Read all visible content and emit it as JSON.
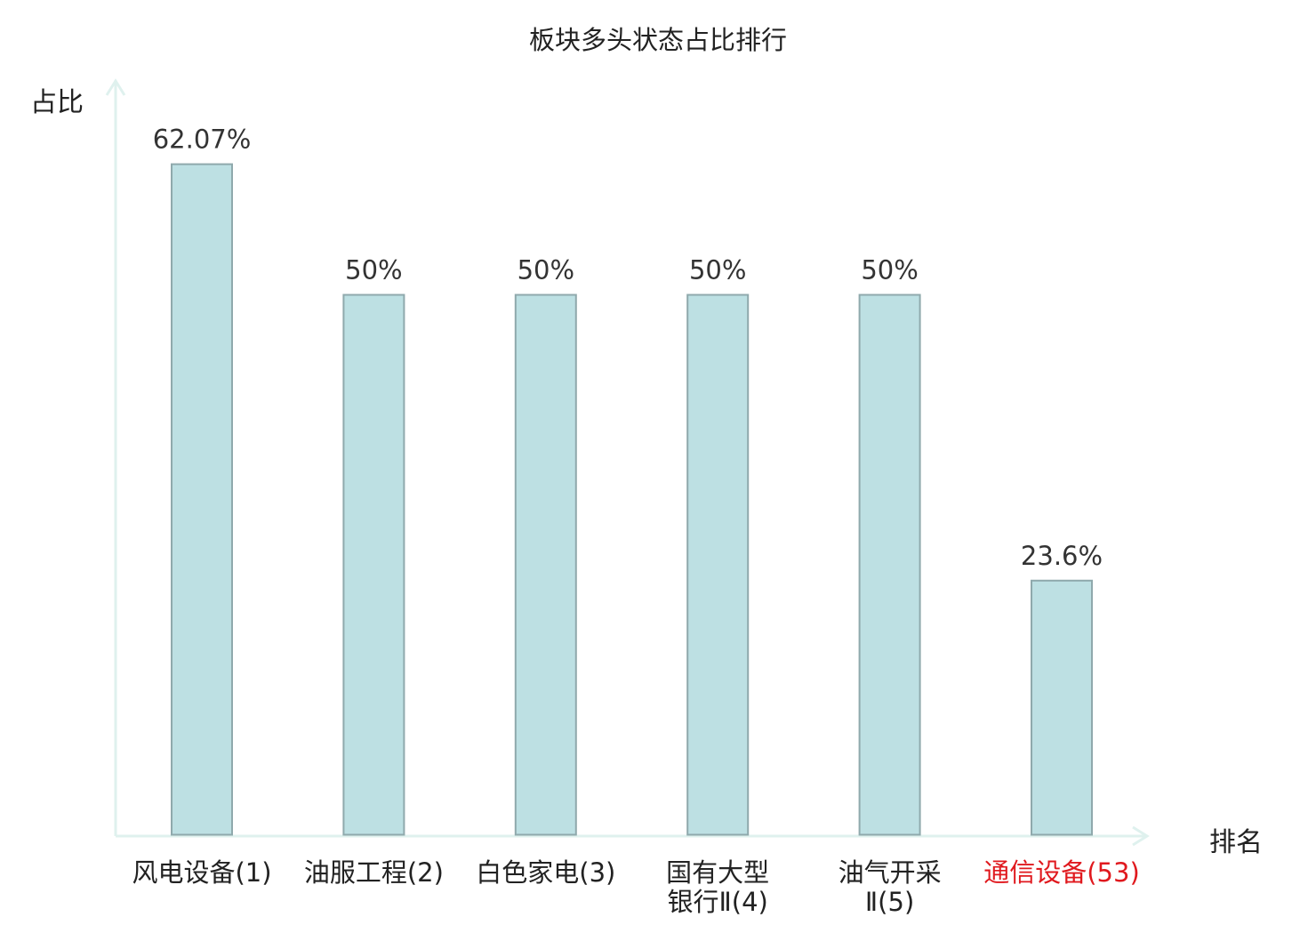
{
  "chart_data": {
    "type": "bar",
    "title": "板块多头状态占比排行",
    "ylabel": "占比",
    "xlabel": "排名",
    "categories": [
      "风电设备(1)",
      "油服工程(2)",
      "白色家电(3)",
      "国有大型银行Ⅱ(4)",
      "油气开采Ⅱ(5)",
      "通信设备(53)"
    ],
    "category_lines": [
      [
        "风电设备(1)"
      ],
      [
        "油服工程(2)"
      ],
      [
        "白色家电(3)"
      ],
      [
        "国有大型",
        "银行Ⅱ(4)"
      ],
      [
        "油气开采",
        "Ⅱ(5)"
      ],
      [
        "通信设备(53)"
      ]
    ],
    "values": [
      62.07,
      50,
      50,
      50,
      50,
      23.6
    ],
    "value_labels": [
      "62.07%",
      "50%",
      "50%",
      "50%",
      "50%",
      "23.6%"
    ],
    "highlight_index": 5,
    "ylim": [
      0,
      70
    ],
    "grid": false,
    "legend": "none",
    "colors": {
      "bar_fill": "#bde0e3",
      "bar_stroke": "#8fa9ac",
      "axis": "#dff1ee",
      "highlight_text": "#e0191e",
      "text": "#333333"
    }
  }
}
